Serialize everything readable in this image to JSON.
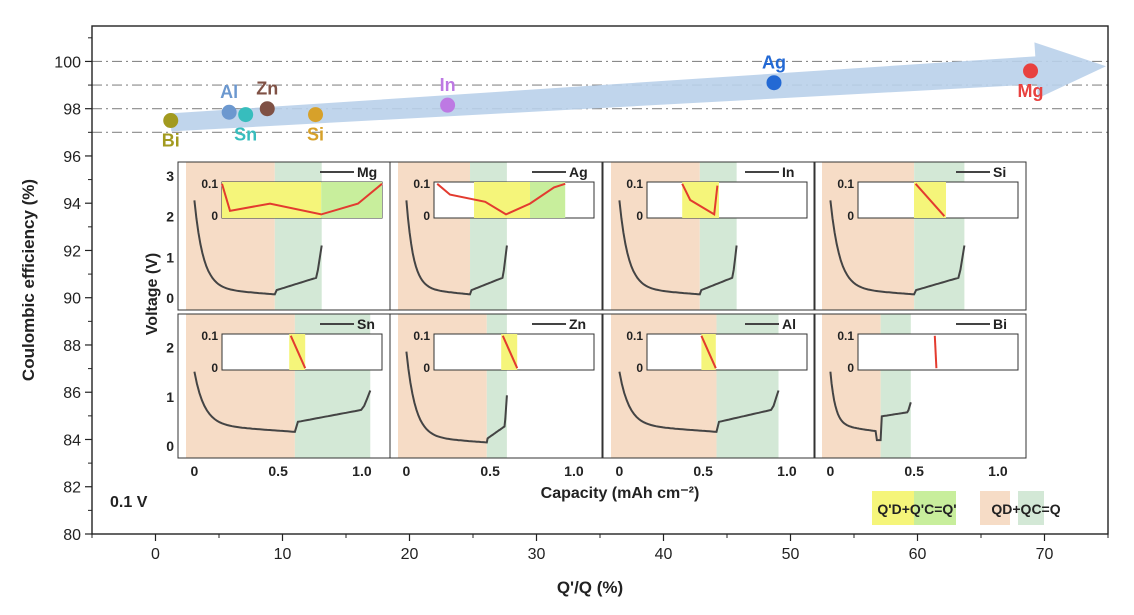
{
  "chart_data": {
    "type": "scatter",
    "xlabel": "Q'/Q (%)",
    "ylabel": "Coulombic efficiency (%)",
    "xlim": [
      -5,
      75
    ],
    "ylim": [
      80,
      101.5
    ],
    "xticks": [
      0,
      10,
      20,
      30,
      40,
      50,
      60,
      70
    ],
    "yticks": [
      80,
      82,
      84,
      86,
      88,
      90,
      92,
      94,
      96,
      98,
      100
    ],
    "reference_lines": [
      100,
      99,
      98,
      97
    ],
    "condition_label": "0.1 V",
    "points": [
      {
        "name": "Bi",
        "x": 1.2,
        "y": 97.5,
        "color": "#a29a1f",
        "label_pos": "below"
      },
      {
        "name": "Al",
        "x": 5.8,
        "y": 97.85,
        "color": "#6c98cf",
        "label_pos": "above"
      },
      {
        "name": "Sn",
        "x": 7.1,
        "y": 97.75,
        "color": "#37bdbd",
        "label_pos": "below"
      },
      {
        "name": "Zn",
        "x": 8.8,
        "y": 98.0,
        "color": "#7f5145",
        "label_pos": "above"
      },
      {
        "name": "Si",
        "x": 12.6,
        "y": 97.75,
        "color": "#d7a12a",
        "label_pos": "below"
      },
      {
        "name": "In",
        "x": 23.0,
        "y": 98.15,
        "color": "#bd79e3",
        "label_pos": "above"
      },
      {
        "name": "Ag",
        "x": 48.7,
        "y": 99.1,
        "color": "#2369d4",
        "label_pos": "above"
      },
      {
        "name": "Mg",
        "x": 68.9,
        "y": 99.6,
        "color": "#e8413f",
        "label_pos": "below"
      }
    ],
    "inset": {
      "ylabel": "Voltage (V)",
      "xlabel": "Capacity   (mAh cm⁻²)",
      "xlim": [
        -0.05,
        1.12
      ],
      "top_yticks": [
        "3",
        "2",
        "1",
        "0"
      ],
      "bottom_yticks": [
        "2",
        "1",
        "0"
      ],
      "xticks": [
        "0",
        "0.5",
        "1.0"
      ],
      "mini_yticks": [
        "0.1",
        "0"
      ],
      "legend": {
        "qprime": "Q'D+Q'C=Q'",
        "q": "QD+QC=Q"
      },
      "panels": [
        {
          "name": "Mg",
          "discharge_end": 0.48,
          "charge_end": 0.76
        },
        {
          "name": "Ag",
          "discharge_end": 0.38,
          "charge_end": 0.6
        },
        {
          "name": "In",
          "discharge_end": 0.48,
          "charge_end": 0.7
        },
        {
          "name": "Si",
          "discharge_end": 0.5,
          "charge_end": 0.8
        },
        {
          "name": "Sn",
          "discharge_end": 0.6,
          "charge_end": 1.05
        },
        {
          "name": "Zn",
          "discharge_end": 0.48,
          "charge_end": 0.6
        },
        {
          "name": "Al",
          "discharge_end": 0.58,
          "charge_end": 0.95
        },
        {
          "name": "Bi",
          "discharge_end": 0.3,
          "charge_end": 0.48
        }
      ]
    }
  }
}
